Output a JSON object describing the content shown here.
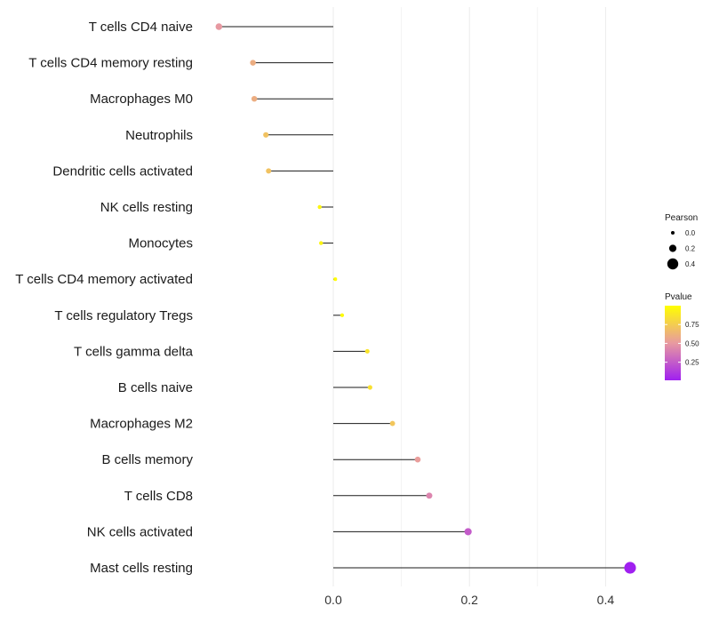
{
  "chart_data": {
    "type": "lollipop",
    "title": "",
    "xlabel": "",
    "ylabel": "",
    "xlim": [
      -0.17,
      0.46
    ],
    "xticks": [
      0.0,
      0.2,
      0.4
    ],
    "xtick_labels": [
      "0.0",
      "0.2",
      "0.4"
    ],
    "grid": true,
    "categories": [
      "T cells CD4 naive",
      "T cells CD4 memory resting",
      "Macrophages M0",
      "Neutrophils",
      "Dendritic cells activated",
      "NK cells resting",
      "Monocytes",
      "T cells CD4 memory activated",
      "T cells regulatory  Tregs ",
      "T cells gamma delta",
      "B cells naive",
      "Macrophages M2",
      "B cells memory",
      "T cells CD8",
      "NK cells activated",
      "Mast cells resting"
    ],
    "values": [
      -0.168,
      -0.118,
      -0.116,
      -0.099,
      -0.095,
      -0.02,
      -0.018,
      0.003,
      0.013,
      0.05,
      0.054,
      0.087,
      0.124,
      0.141,
      0.198,
      0.436
    ],
    "pvalues": [
      0.5,
      0.6,
      0.6,
      0.7,
      0.7,
      0.95,
      0.95,
      0.99,
      0.98,
      0.87,
      0.85,
      0.72,
      0.52,
      0.42,
      0.25,
      0.01
    ],
    "legend": {
      "placement": "right",
      "size_title": "Pearson",
      "size_entries": [
        {
          "label": "0.0",
          "value": 0.0
        },
        {
          "label": "0.2",
          "value": 0.2
        },
        {
          "label": "0.4",
          "value": 0.4
        }
      ],
      "color_title": "Pvalue",
      "color_ticks": [
        {
          "label": "0.75",
          "value": 0.75
        },
        {
          "label": "0.50",
          "value": 0.5
        },
        {
          "label": "0.25",
          "value": 0.25
        }
      ],
      "color_range": [
        0.01,
        1.0
      ]
    },
    "colors": {
      "low": "#a020f0",
      "mid": "#e89aa0",
      "high": "#ffff00",
      "stem": "#1a1a1a",
      "grid": "#ebebeb"
    }
  }
}
